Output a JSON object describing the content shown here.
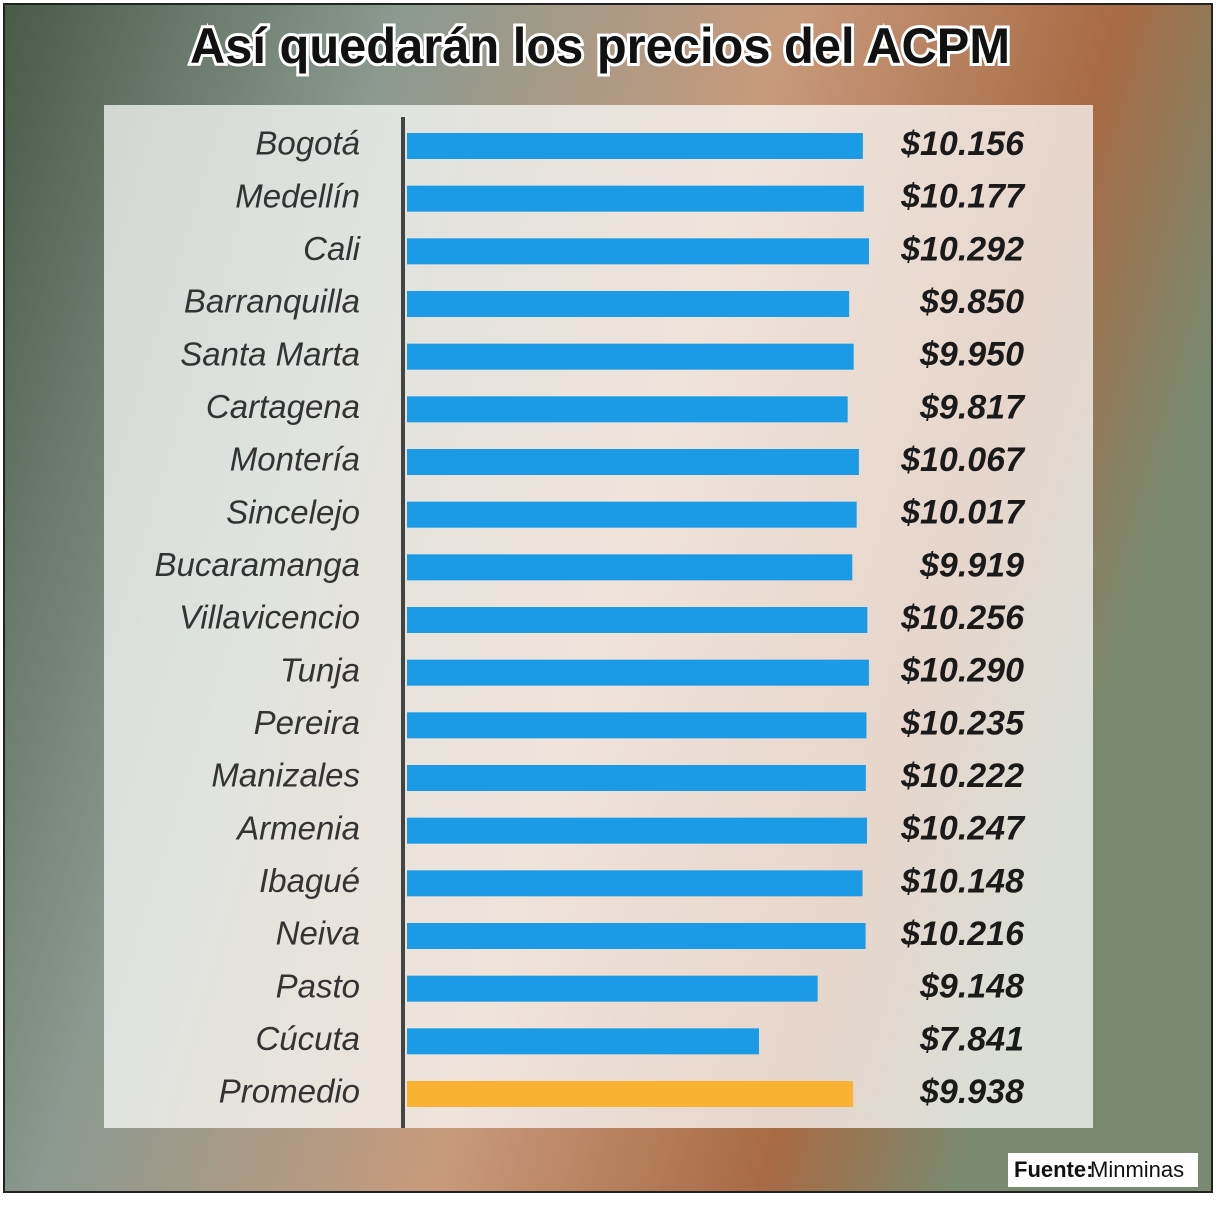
{
  "chart_data": {
    "type": "bar",
    "orientation": "horizontal",
    "title": "Así quedarán los precios del ACPM",
    "categories": [
      "Bogotá",
      "Medellín",
      "Cali",
      "Barranquilla",
      "Santa Marta",
      "Cartagena",
      "Montería",
      "Sincelejo",
      "Bucaramanga",
      "Villavicencio",
      "Tunja",
      "Pereira",
      "Manizales",
      "Armenia",
      "Ibagué",
      "Neiva",
      "Pasto",
      "Cúcuta",
      "Promedio"
    ],
    "values": [
      10156,
      10177,
      10292,
      9850,
      9950,
      9817,
      10067,
      10017,
      9919,
      10256,
      10290,
      10235,
      10222,
      10247,
      10148,
      10216,
      9148,
      7841,
      9938
    ],
    "value_labels": [
      "$10.156",
      "$10.177",
      "$10.292",
      "$9.850",
      "$9.950",
      "$9.817",
      "$10.067",
      "$10.017",
      "$9.919",
      "$10.256",
      "$10.290",
      "$10.235",
      "$10.222",
      "$10.247",
      "$10.148",
      "$10.216",
      "$9.148",
      "$7.841",
      "$9.938"
    ],
    "colors": [
      "#1b9be6",
      "#1b9be6",
      "#1b9be6",
      "#1b9be6",
      "#1b9be6",
      "#1b9be6",
      "#1b9be6",
      "#1b9be6",
      "#1b9be6",
      "#1b9be6",
      "#1b9be6",
      "#1b9be6",
      "#1b9be6",
      "#1b9be6",
      "#1b9be6",
      "#1b9be6",
      "#1b9be6",
      "#1b9be6",
      "#f9b233"
    ],
    "source_label": "Fuente:",
    "source": "Minminas"
  }
}
